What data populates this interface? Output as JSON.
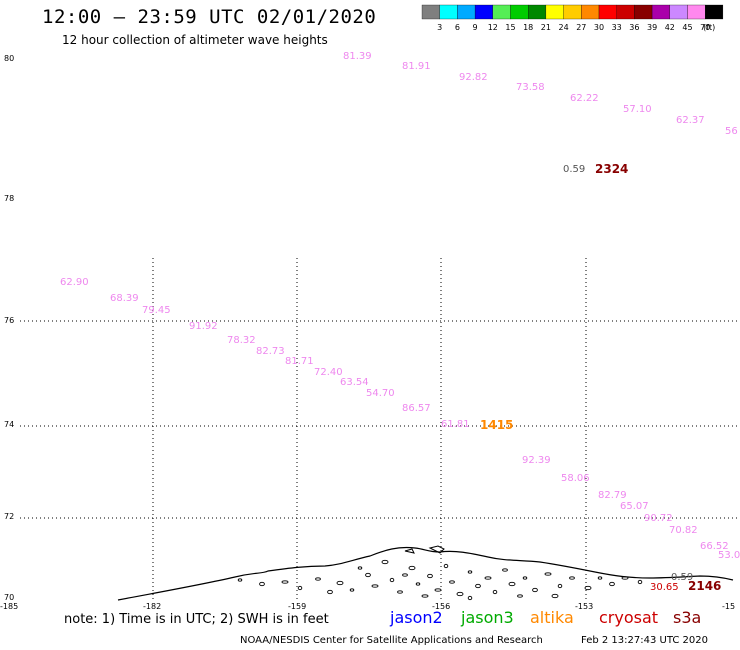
{
  "header": {
    "title": "12:00 – 23:59 UTC 02/01/2020",
    "subtitle": "12 hour collection of altimeter wave heights"
  },
  "color_scale": {
    "labels": [
      "3",
      "6",
      "9",
      "12",
      "15",
      "18",
      "21",
      "24",
      "27",
      "30",
      "33",
      "36",
      "39",
      "42",
      "45",
      "70"
    ],
    "unit": "(ft)",
    "colors": [
      "#7f7f7f",
      "#00ffff",
      "#00aaff",
      "#0000ff",
      "#55ee55",
      "#00cc00",
      "#008800",
      "#ffff00",
      "#ffcc00",
      "#ff8800",
      "#ff0000",
      "#cc0000",
      "#880000",
      "#aa00aa",
      "#cc88ff",
      "#ff88ee",
      "#000000"
    ]
  },
  "map": {
    "lat_labels": [
      "80",
      "78",
      "76",
      "74",
      "72",
      "70"
    ],
    "lon_labels": [
      "-185",
      "-182",
      "-159",
      "-156",
      "-153",
      "-15"
    ]
  },
  "track_north": {
    "color": "#ee88ee",
    "values": [
      "81.39",
      "81.91",
      "92.82",
      "73.58",
      "62.22",
      "57.10",
      "62.37",
      "56"
    ]
  },
  "track_south": {
    "color": "#ee88ee",
    "values": [
      "62.90",
      "68.39",
      "79.45",
      "91.92",
      "78.32",
      "82.73",
      "81.71",
      "72.40",
      "63.54",
      "54.70",
      "86.57",
      "61.81",
      "92.39",
      "58.06",
      "82.79",
      "65.07",
      "90.72",
      "70.82",
      "66.52",
      "53.0"
    ]
  },
  "pass_markers": [
    {
      "small": "0.59",
      "big": "2324",
      "big_color": "#880000"
    },
    {
      "big": "1415",
      "big_color": "#ff8800"
    },
    {
      "small": "0.59",
      "extra": "30.65",
      "big": "2146",
      "big_color": "#880000"
    }
  ],
  "footer": {
    "note": "note:  1) Time is in UTC;  2) SWH is in feet",
    "satellites": [
      {
        "name": "jason2",
        "color": "#0000ff"
      },
      {
        "name": "jason3",
        "color": "#00aa00"
      },
      {
        "name": "altika",
        "color": "#ff8800"
      },
      {
        "name": "cryosat",
        "color": "#cc0000"
      },
      {
        "name": "s3a",
        "color": "#880000"
      }
    ],
    "credit": "NOAA/NESDIS Center for Satellite Applications and Research",
    "timestamp": "Feb  2 13:27:43 UTC 2020"
  }
}
